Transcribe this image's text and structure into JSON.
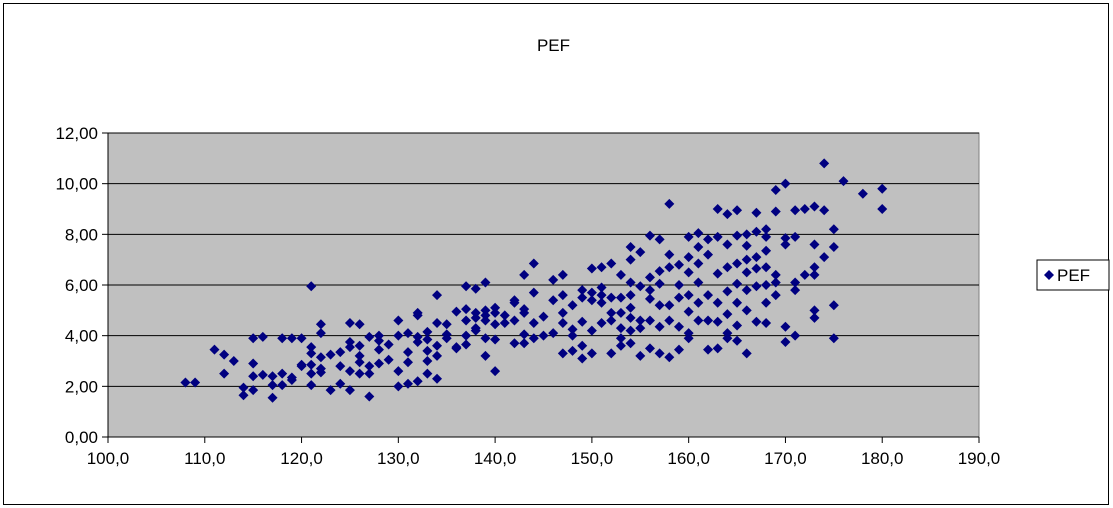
{
  "chart_data": {
    "type": "scatter",
    "title": "PEF",
    "xlabel": "",
    "ylabel": "",
    "xlim": [
      100,
      190
    ],
    "ylim": [
      0,
      12
    ],
    "x_ticks": [
      "100,0",
      "110,0",
      "120,0",
      "130,0",
      "140,0",
      "150,0",
      "160,0",
      "170,0",
      "180,0",
      "190,0"
    ],
    "y_ticks": [
      "0,00",
      "2,00",
      "4,00",
      "6,00",
      "8,00",
      "10,00",
      "12,00"
    ],
    "grid": "horizontal",
    "plot_background": "#c0c0c0",
    "marker": "diamond",
    "legend_position": "right",
    "series": [
      {
        "name": "PEF",
        "color": "#000080",
        "points": [
          [
            108,
            2.15
          ],
          [
            109,
            2.15
          ],
          [
            111,
            3.45
          ],
          [
            112,
            3.25
          ],
          [
            112,
            2.5
          ],
          [
            113,
            3.0
          ],
          [
            114,
            1.65
          ],
          [
            114,
            1.95
          ],
          [
            115,
            1.85
          ],
          [
            115,
            2.9
          ],
          [
            115,
            2.4
          ],
          [
            115,
            3.9
          ],
          [
            116,
            2.45
          ],
          [
            116,
            3.95
          ],
          [
            117,
            1.55
          ],
          [
            117,
            2.05
          ],
          [
            117,
            2.4
          ],
          [
            118,
            2.05
          ],
          [
            118,
            2.5
          ],
          [
            118,
            3.9
          ],
          [
            119,
            2.25
          ],
          [
            119,
            3.9
          ],
          [
            119,
            2.35
          ],
          [
            120,
            2.8
          ],
          [
            120,
            3.9
          ],
          [
            120,
            2.85
          ],
          [
            121,
            3.3
          ],
          [
            121,
            2.5
          ],
          [
            121,
            3.55
          ],
          [
            121,
            5.95
          ],
          [
            121,
            2.05
          ],
          [
            121,
            2.85
          ],
          [
            122,
            2.7
          ],
          [
            122,
            4.1
          ],
          [
            122,
            4.45
          ],
          [
            122,
            3.15
          ],
          [
            122,
            2.55
          ],
          [
            123,
            1.85
          ],
          [
            123,
            3.25
          ],
          [
            124,
            2.1
          ],
          [
            124,
            3.35
          ],
          [
            124,
            2.8
          ],
          [
            125,
            3.75
          ],
          [
            125,
            3.55
          ],
          [
            125,
            1.85
          ],
          [
            125,
            4.5
          ],
          [
            125,
            2.6
          ],
          [
            126,
            2.95
          ],
          [
            126,
            3.6
          ],
          [
            126,
            2.5
          ],
          [
            126,
            4.45
          ],
          [
            126,
            3.2
          ],
          [
            127,
            3.95
          ],
          [
            127,
            2.5
          ],
          [
            127,
            1.6
          ],
          [
            127,
            2.8
          ],
          [
            128,
            3.8
          ],
          [
            128,
            4.0
          ],
          [
            128,
            2.9
          ],
          [
            128,
            3.45
          ],
          [
            129,
            3.05
          ],
          [
            129,
            3.65
          ],
          [
            130,
            4.0
          ],
          [
            130,
            4.6
          ],
          [
            130,
            2.6
          ],
          [
            130,
            2.0
          ],
          [
            131,
            4.1
          ],
          [
            131,
            3.35
          ],
          [
            131,
            2.95
          ],
          [
            131,
            2.1
          ],
          [
            132,
            3.75
          ],
          [
            132,
            4.8
          ],
          [
            132,
            4.9
          ],
          [
            132,
            3.95
          ],
          [
            132,
            2.2
          ],
          [
            133,
            3.4
          ],
          [
            133,
            4.15
          ],
          [
            133,
            3.85
          ],
          [
            133,
            3.0
          ],
          [
            133,
            2.5
          ],
          [
            134,
            3.6
          ],
          [
            134,
            4.5
          ],
          [
            134,
            5.6
          ],
          [
            134,
            2.3
          ],
          [
            134,
            3.2
          ],
          [
            135,
            3.9
          ],
          [
            135,
            4.05
          ],
          [
            135,
            4.45
          ],
          [
            136,
            4.95
          ],
          [
            136,
            3.55
          ],
          [
            136,
            3.5
          ],
          [
            137,
            4.6
          ],
          [
            137,
            5.95
          ],
          [
            137,
            5.05
          ],
          [
            137,
            4.0
          ],
          [
            137,
            3.65
          ],
          [
            138,
            4.9
          ],
          [
            138,
            4.7
          ],
          [
            138,
            5.85
          ],
          [
            138,
            4.3
          ],
          [
            138,
            4.2
          ],
          [
            139,
            4.6
          ],
          [
            139,
            6.1
          ],
          [
            139,
            5.0
          ],
          [
            139,
            3.2
          ],
          [
            139,
            3.9
          ],
          [
            139,
            4.8
          ],
          [
            140,
            4.45
          ],
          [
            140,
            5.1
          ],
          [
            140,
            2.6
          ],
          [
            140,
            4.9
          ],
          [
            140,
            3.85
          ],
          [
            141,
            4.5
          ],
          [
            141,
            4.8
          ],
          [
            142,
            5.3
          ],
          [
            142,
            3.7
          ],
          [
            142,
            4.6
          ],
          [
            142,
            5.4
          ],
          [
            143,
            5.05
          ],
          [
            143,
            6.4
          ],
          [
            143,
            4.9
          ],
          [
            143,
            3.7
          ],
          [
            143,
            4.05
          ],
          [
            144,
            4.5
          ],
          [
            144,
            6.85
          ],
          [
            144,
            3.9
          ],
          [
            144,
            5.7
          ],
          [
            145,
            4.75
          ],
          [
            145,
            4.0
          ],
          [
            146,
            5.4
          ],
          [
            146,
            6.2
          ],
          [
            146,
            4.1
          ],
          [
            147,
            6.4
          ],
          [
            147,
            4.9
          ],
          [
            147,
            4.5
          ],
          [
            147,
            5.6
          ],
          [
            147,
            3.3
          ],
          [
            148,
            3.4
          ],
          [
            148,
            5.2
          ],
          [
            148,
            4.0
          ],
          [
            148,
            4.25
          ],
          [
            149,
            5.8
          ],
          [
            149,
            5.5
          ],
          [
            149,
            4.55
          ],
          [
            149,
            3.6
          ],
          [
            149,
            3.1
          ],
          [
            150,
            6.65
          ],
          [
            150,
            5.4
          ],
          [
            150,
            5.7
          ],
          [
            150,
            4.2
          ],
          [
            150,
            3.3
          ],
          [
            151,
            6.7
          ],
          [
            151,
            4.5
          ],
          [
            151,
            5.6
          ],
          [
            151,
            5.9
          ],
          [
            151,
            5.3
          ],
          [
            152,
            6.85
          ],
          [
            152,
            5.5
          ],
          [
            152,
            3.3
          ],
          [
            152,
            4.9
          ],
          [
            152,
            4.6
          ],
          [
            153,
            6.4
          ],
          [
            153,
            5.5
          ],
          [
            153,
            4.3
          ],
          [
            153,
            3.6
          ],
          [
            153,
            3.9
          ],
          [
            153,
            4.9
          ],
          [
            154,
            7.0
          ],
          [
            154,
            6.1
          ],
          [
            154,
            5.6
          ],
          [
            154,
            4.7
          ],
          [
            154,
            4.2
          ],
          [
            154,
            3.7
          ],
          [
            154,
            5.1
          ],
          [
            154,
            7.5
          ],
          [
            155,
            7.3
          ],
          [
            155,
            5.95
          ],
          [
            155,
            4.6
          ],
          [
            155,
            3.2
          ],
          [
            155,
            4.3
          ],
          [
            156,
            7.95
          ],
          [
            156,
            6.3
          ],
          [
            156,
            5.45
          ],
          [
            156,
            4.6
          ],
          [
            156,
            3.5
          ],
          [
            156,
            5.8
          ],
          [
            157,
            7.8
          ],
          [
            157,
            6.55
          ],
          [
            157,
            6.05
          ],
          [
            157,
            4.35
          ],
          [
            157,
            3.3
          ],
          [
            157,
            5.2
          ],
          [
            158,
            9.2
          ],
          [
            158,
            7.2
          ],
          [
            158,
            6.7
          ],
          [
            158,
            5.2
          ],
          [
            158,
            4.6
          ],
          [
            158,
            3.15
          ],
          [
            159,
            6.0
          ],
          [
            159,
            5.5
          ],
          [
            159,
            4.35
          ],
          [
            159,
            3.45
          ],
          [
            159,
            6.8
          ],
          [
            160,
            7.9
          ],
          [
            160,
            7.1
          ],
          [
            160,
            6.5
          ],
          [
            160,
            5.6
          ],
          [
            160,
            4.95
          ],
          [
            160,
            4.1
          ],
          [
            160,
            3.9
          ],
          [
            161,
            8.05
          ],
          [
            161,
            7.5
          ],
          [
            161,
            6.1
          ],
          [
            161,
            5.3
          ],
          [
            161,
            4.6
          ],
          [
            161,
            6.85
          ],
          [
            162,
            7.2
          ],
          [
            162,
            7.8
          ],
          [
            162,
            5.6
          ],
          [
            162,
            4.6
          ],
          [
            162,
            3.45
          ],
          [
            163,
            9.0
          ],
          [
            163,
            6.45
          ],
          [
            163,
            5.3
          ],
          [
            163,
            4.55
          ],
          [
            163,
            3.5
          ],
          [
            163,
            7.9
          ],
          [
            164,
            8.8
          ],
          [
            164,
            7.6
          ],
          [
            164,
            6.7
          ],
          [
            164,
            5.75
          ],
          [
            164,
            4.85
          ],
          [
            164,
            4.1
          ],
          [
            164,
            3.9
          ],
          [
            165,
            8.95
          ],
          [
            165,
            7.95
          ],
          [
            165,
            6.85
          ],
          [
            165,
            6.05
          ],
          [
            165,
            5.3
          ],
          [
            165,
            4.4
          ],
          [
            165,
            3.8
          ],
          [
            166,
            8.0
          ],
          [
            166,
            7.55
          ],
          [
            166,
            7.0
          ],
          [
            166,
            6.5
          ],
          [
            166,
            5.8
          ],
          [
            166,
            5.0
          ],
          [
            166,
            3.3
          ],
          [
            167,
            8.85
          ],
          [
            167,
            8.1
          ],
          [
            167,
            7.1
          ],
          [
            167,
            6.65
          ],
          [
            167,
            5.95
          ],
          [
            167,
            4.55
          ],
          [
            168,
            8.2
          ],
          [
            168,
            7.35
          ],
          [
            168,
            6.7
          ],
          [
            168,
            6.0
          ],
          [
            168,
            5.3
          ],
          [
            168,
            4.5
          ],
          [
            168,
            7.9
          ],
          [
            169,
            9.75
          ],
          [
            169,
            8.9
          ],
          [
            169,
            6.4
          ],
          [
            169,
            6.1
          ],
          [
            169,
            5.6
          ],
          [
            170,
            10.0
          ],
          [
            170,
            7.85
          ],
          [
            170,
            7.6
          ],
          [
            170,
            4.35
          ],
          [
            170,
            3.75
          ],
          [
            171,
            8.95
          ],
          [
            171,
            7.9
          ],
          [
            171,
            6.1
          ],
          [
            171,
            5.8
          ],
          [
            171,
            4.0
          ],
          [
            172,
            6.4
          ],
          [
            172,
            9.0
          ],
          [
            173,
            9.1
          ],
          [
            173,
            7.6
          ],
          [
            173,
            6.7
          ],
          [
            173,
            6.4
          ],
          [
            173,
            5.0
          ],
          [
            173,
            4.7
          ],
          [
            174,
            10.8
          ],
          [
            174,
            8.95
          ],
          [
            174,
            7.1
          ],
          [
            175,
            8.2
          ],
          [
            175,
            7.5
          ],
          [
            175,
            5.2
          ],
          [
            175,
            3.9
          ],
          [
            176,
            10.1
          ],
          [
            178,
            9.6
          ],
          [
            180,
            9.8
          ],
          [
            180,
            9.0
          ]
        ]
      }
    ]
  }
}
